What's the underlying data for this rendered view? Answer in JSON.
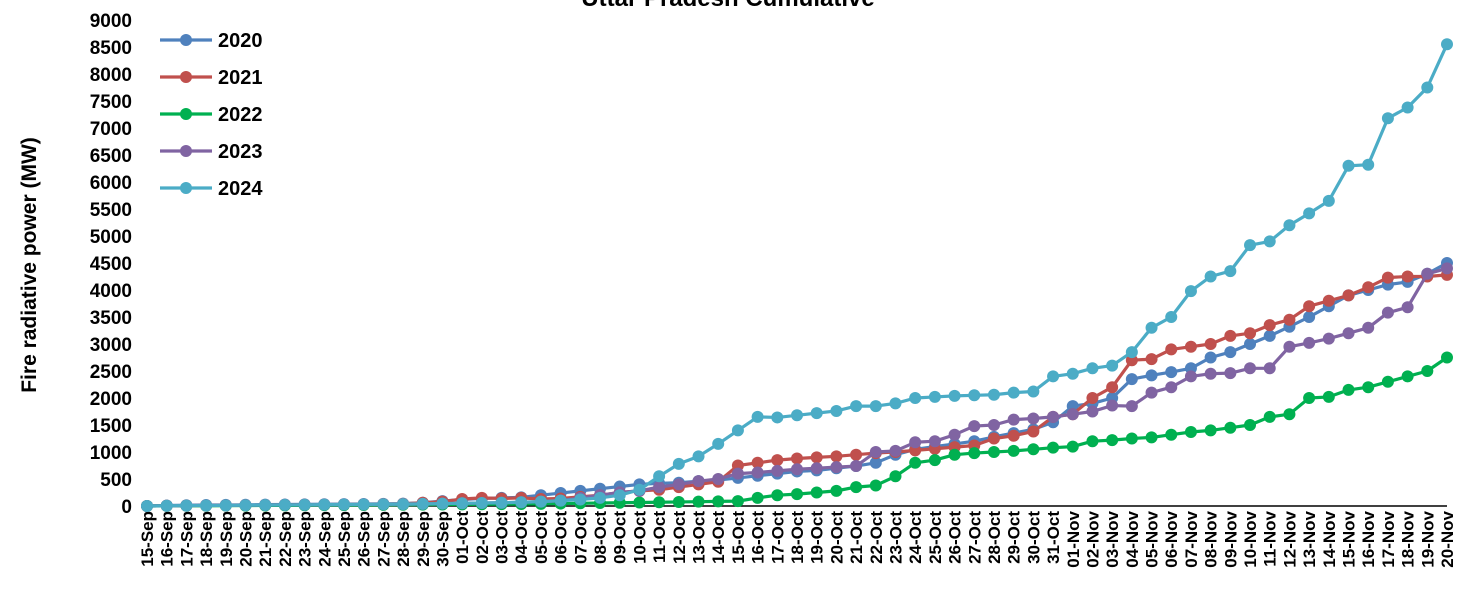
{
  "chart_data": {
    "type": "line",
    "title": "Uttar Pradesh Cumulative",
    "xlabel": "",
    "ylabel": "Fire radiative power (MW)",
    "ylim": [
      0,
      9000
    ],
    "yticks": [
      0,
      500,
      1000,
      1500,
      2000,
      2500,
      3000,
      3500,
      4000,
      4500,
      5000,
      5500,
      6000,
      6500,
      7000,
      7500,
      8000,
      8500,
      9000
    ],
    "grid": false,
    "legend_position": "top-left",
    "x": [
      "15-Sep",
      "16-Sep",
      "17-Sep",
      "18-Sep",
      "19-Sep",
      "20-Sep",
      "21-Sep",
      "22-Sep",
      "23-Sep",
      "24-Sep",
      "25-Sep",
      "26-Sep",
      "27-Sep",
      "28-Sep",
      "29-Sep",
      "30-Sep",
      "01-Oct",
      "02-Oct",
      "03-Oct",
      "04-Oct",
      "05-Oct",
      "06-Oct",
      "07-Oct",
      "08-Oct",
      "09-Oct",
      "10-Oct",
      "11-Oct",
      "12-Oct",
      "13-Oct",
      "14-Oct",
      "15-Oct",
      "16-Oct",
      "17-Oct",
      "18-Oct",
      "19-Oct",
      "20-Oct",
      "21-Oct",
      "22-Oct",
      "23-Oct",
      "24-Oct",
      "25-Oct",
      "26-Oct",
      "27-Oct",
      "28-Oct",
      "29-Oct",
      "30-Oct",
      "31-Oct",
      "01-Nov",
      "02-Nov",
      "03-Nov",
      "04-Nov",
      "05-Nov",
      "06-Nov",
      "07-Nov",
      "08-Nov",
      "09-Nov",
      "10-Nov",
      "11-Nov",
      "12-Nov",
      "13-Nov",
      "14-Nov",
      "15-Nov",
      "16-Nov",
      "17-Nov",
      "18-Nov",
      "19-Nov",
      "20-Nov"
    ],
    "series": [
      {
        "name": "2020",
        "color": "#4F81BD",
        "values": [
          0,
          10,
          15,
          18,
          20,
          22,
          25,
          28,
          30,
          32,
          35,
          38,
          40,
          45,
          60,
          90,
          120,
          140,
          150,
          160,
          200,
          240,
          280,
          320,
          360,
          400,
          420,
          430,
          460,
          480,
          520,
          560,
          600,
          640,
          660,
          700,
          740,
          800,
          950,
          1050,
          1100,
          1150,
          1200,
          1280,
          1350,
          1420,
          1550,
          1850,
          1900,
          2000,
          2350,
          2420,
          2480,
          2550,
          2750,
          2850,
          3000,
          3150,
          3320,
          3500,
          3700,
          3900,
          4000,
          4100,
          4150,
          4300,
          4500
        ]
      },
      {
        "name": "2021",
        "color": "#C0504D",
        "values": [
          0,
          5,
          8,
          10,
          12,
          15,
          18,
          20,
          22,
          25,
          28,
          30,
          35,
          40,
          60,
          80,
          130,
          150,
          140,
          150,
          130,
          140,
          170,
          200,
          250,
          280,
          300,
          350,
          400,
          450,
          750,
          800,
          850,
          880,
          900,
          920,
          950,
          980,
          1000,
          1030,
          1060,
          1090,
          1120,
          1250,
          1300,
          1380,
          1650,
          1700,
          2000,
          2200,
          2700,
          2720,
          2900,
          2950,
          3000,
          3150,
          3200,
          3350,
          3450,
          3700,
          3800,
          3900,
          4050,
          4230,
          4250,
          4250,
          4280
        ]
      },
      {
        "name": "2022",
        "color": "#00B050",
        "values": [
          0,
          2,
          4,
          5,
          6,
          8,
          10,
          12,
          14,
          15,
          16,
          18,
          20,
          22,
          25,
          28,
          30,
          32,
          34,
          36,
          40,
          45,
          50,
          55,
          60,
          65,
          70,
          75,
          80,
          85,
          90,
          150,
          200,
          220,
          250,
          280,
          350,
          380,
          550,
          800,
          850,
          950,
          980,
          1000,
          1020,
          1050,
          1080,
          1100,
          1200,
          1220,
          1250,
          1270,
          1320,
          1370,
          1400,
          1450,
          1500,
          1650,
          1700,
          2000,
          2020,
          2150,
          2200,
          2300,
          2400,
          2500,
          2750
        ]
      },
      {
        "name": "2023",
        "color": "#8064A2",
        "values": [
          0,
          5,
          8,
          10,
          12,
          15,
          18,
          20,
          22,
          25,
          28,
          30,
          32,
          35,
          40,
          45,
          50,
          55,
          60,
          70,
          80,
          100,
          150,
          200,
          250,
          280,
          350,
          400,
          460,
          500,
          600,
          620,
          650,
          680,
          700,
          720,
          740,
          1000,
          1020,
          1180,
          1200,
          1320,
          1480,
          1500,
          1600,
          1620,
          1650,
          1700,
          1750,
          1860,
          1850,
          2100,
          2200,
          2400,
          2450,
          2460,
          2550,
          2550,
          2950,
          3020,
          3100,
          3200,
          3300,
          3580,
          3680,
          4300,
          4400
        ]
      },
      {
        "name": "2024",
        "color": "#4BACC6",
        "values": [
          0,
          5,
          8,
          10,
          12,
          15,
          18,
          20,
          22,
          25,
          28,
          30,
          32,
          35,
          40,
          45,
          50,
          55,
          60,
          70,
          80,
          100,
          120,
          150,
          200,
          300,
          550,
          780,
          920,
          1150,
          1400,
          1650,
          1640,
          1680,
          1720,
          1760,
          1850,
          1850,
          1900,
          2000,
          2020,
          2040,
          2050,
          2060,
          2100,
          2120,
          2400,
          2450,
          2550,
          2600,
          2850,
          3300,
          3500,
          3980,
          4250,
          4350,
          4830,
          4900,
          5200,
          5420,
          5650,
          6300,
          6320,
          7180,
          7380,
          7750,
          8550
        ]
      }
    ]
  }
}
